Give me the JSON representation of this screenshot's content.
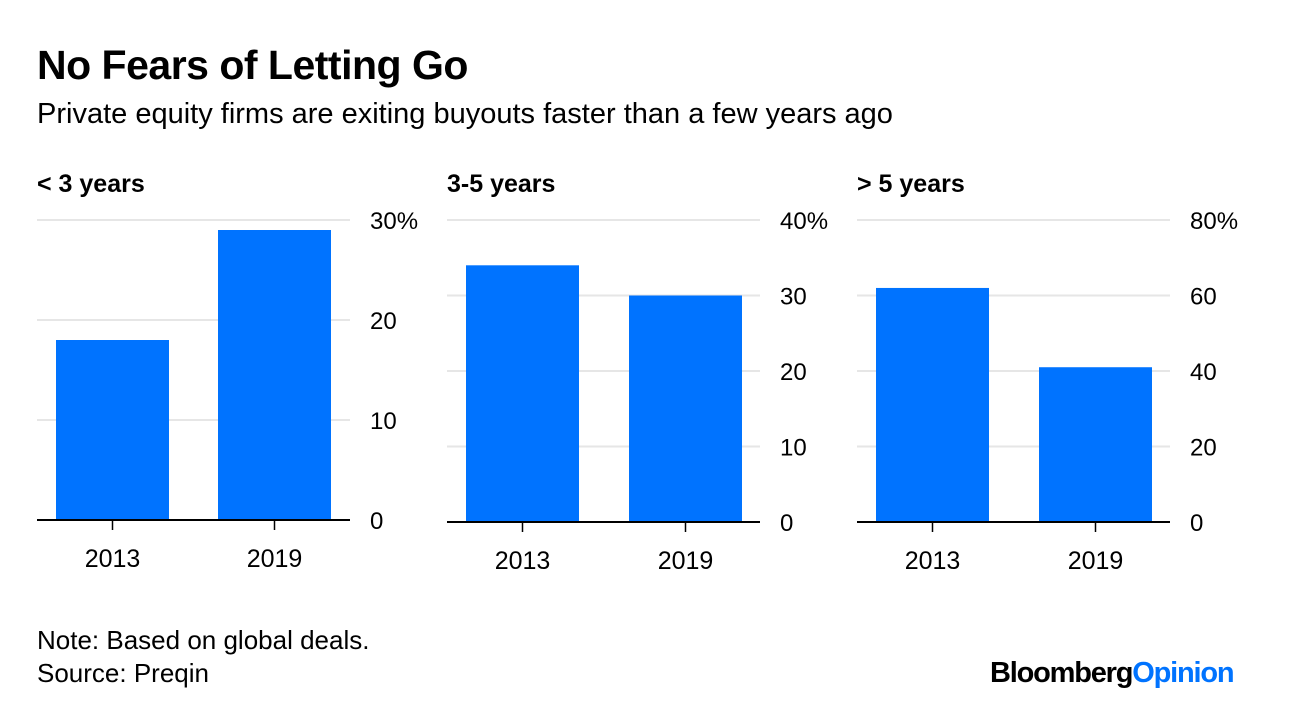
{
  "title": "No Fears of Letting Go",
  "subtitle": "Private equity firms are exiting buyouts faster than a few years ago",
  "colors": {
    "bar": "#0073ff",
    "grid": "#e6e6e6",
    "axis": "#000000",
    "text": "#000000"
  },
  "chart_data": [
    {
      "type": "bar",
      "title": "< 3 years",
      "categories": [
        "2013",
        "2019"
      ],
      "values": [
        18,
        29
      ],
      "ylim": [
        0,
        30
      ],
      "yticks": [
        "0",
        "10",
        "20",
        "30%"
      ],
      "grid": true
    },
    {
      "type": "bar",
      "title": "3-5 years",
      "categories": [
        "2013",
        "2019"
      ],
      "values": [
        34,
        30
      ],
      "ylim": [
        0,
        40
      ],
      "yticks": [
        "0",
        "10",
        "20",
        "30",
        "40%"
      ],
      "grid": true
    },
    {
      "type": "bar",
      "title": "> 5 years",
      "categories": [
        "2013",
        "2019"
      ],
      "values": [
        62,
        41
      ],
      "ylim": [
        0,
        80
      ],
      "yticks": [
        "0",
        "20",
        "40",
        "60",
        "80%"
      ],
      "grid": true
    }
  ],
  "footer": {
    "note": "Note: Based on global deals.",
    "source": "Source: Preqin"
  },
  "brand": {
    "part1": "Bloomberg",
    "part2": "Opinion"
  }
}
